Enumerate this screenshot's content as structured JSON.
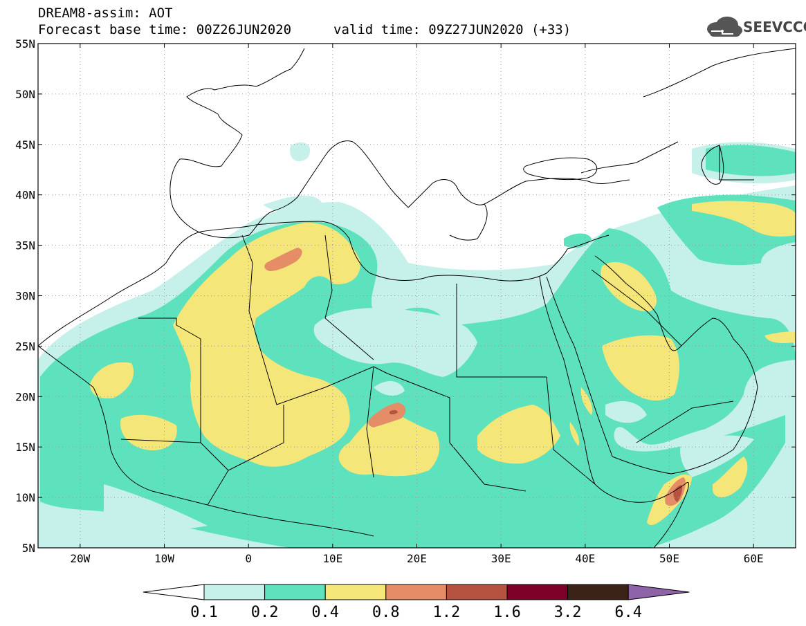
{
  "header": {
    "title": "DREAM8-assim: AOT",
    "base_time": "Forecast base time: 00Z26JUN2020",
    "valid_time": "valid time: 09Z27JUN2020 (+33)"
  },
  "logo": {
    "text": "SEEVCCC",
    "icon": "cloud-icon"
  },
  "map": {
    "lon_range": [
      -25,
      65
    ],
    "lat_range": [
      5,
      55
    ],
    "lat_labels": [
      "55N",
      "50N",
      "45N",
      "40N",
      "35N",
      "30N",
      "25N",
      "20N",
      "15N",
      "10N",
      "5N"
    ],
    "lon_labels": [
      "20W",
      "10W",
      "0",
      "10E",
      "20E",
      "30E",
      "40E",
      "50E",
      "60E"
    ]
  },
  "colorbar": {
    "labels": [
      "0.1",
      "0.2",
      "0.4",
      "0.8",
      "1.2",
      "1.6",
      "3.2",
      "6.4"
    ],
    "colors": [
      "#ffffff",
      "#c6f0ea",
      "#5ee1bd",
      "#f4e678",
      "#e48d67",
      "#b65240",
      "#7c0028",
      "#3b2417",
      "#8f63a8"
    ]
  }
}
